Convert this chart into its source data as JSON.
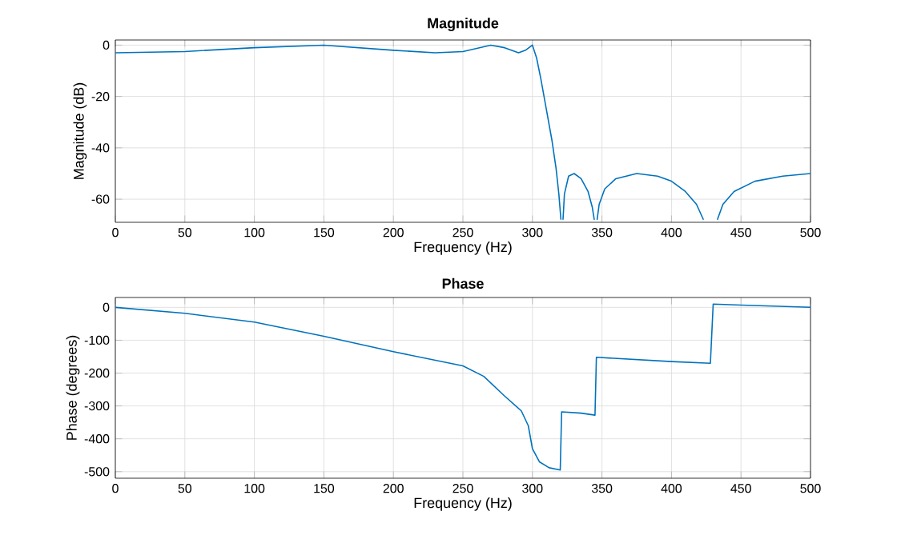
{
  "chart_data": [
    {
      "type": "line",
      "title": "Magnitude",
      "xlabel": "Frequency (Hz)",
      "ylabel": "Magnitude (dB)",
      "xlim": [
        0,
        500
      ],
      "ylim": [
        -69,
        2
      ],
      "xticks": [
        0,
        50,
        100,
        150,
        200,
        250,
        300,
        350,
        400,
        450,
        500
      ],
      "yticks": [
        -60,
        -40,
        -20,
        0
      ],
      "grid": true,
      "x": [
        0,
        50,
        100,
        150,
        200,
        230,
        250,
        270,
        280,
        290,
        295,
        300,
        303,
        306,
        310,
        314,
        317,
        319,
        320.5,
        321,
        322,
        323,
        326,
        330,
        335,
        340,
        343,
        344.5,
        345.5,
        346.5,
        348,
        352,
        360,
        375,
        390,
        400,
        410,
        418,
        423,
        428,
        433,
        437,
        445,
        460,
        480,
        500
      ],
      "series": [
        {
          "color": "#0072bd",
          "values": [
            -3,
            -2.5,
            -1,
            0,
            -2,
            -3,
            -2.5,
            0,
            -1,
            -3,
            -2,
            0,
            -5,
            -13,
            -25,
            -37,
            -48,
            -58,
            -68,
            null,
            -68,
            -58,
            -51,
            -50,
            -52,
            -57,
            -63,
            -68,
            null,
            -68,
            -62,
            -56,
            -52,
            -50,
            -51,
            -53,
            -57,
            -62,
            -68,
            null,
            -68,
            -62,
            -57,
            -53,
            -51,
            -50
          ]
        }
      ]
    },
    {
      "type": "line",
      "title": "Phase",
      "xlabel": "Frequency (Hz)",
      "ylabel": "Phase (degrees)",
      "xlim": [
        0,
        500
      ],
      "ylim": [
        -520,
        30
      ],
      "xticks": [
        0,
        50,
        100,
        150,
        200,
        250,
        300,
        350,
        400,
        450,
        500
      ],
      "yticks": [
        -500,
        -400,
        -300,
        -200,
        -100,
        0
      ],
      "grid": true,
      "x": [
        0,
        50,
        100,
        150,
        200,
        250,
        265,
        280,
        292,
        297,
        300,
        305,
        312,
        320,
        321,
        335,
        345,
        346,
        400,
        428,
        430,
        450,
        500
      ],
      "series": [
        {
          "color": "#0072bd",
          "values": [
            0,
            -18,
            -45,
            -88,
            -135,
            -178,
            -210,
            -270,
            -315,
            -360,
            -430,
            -470,
            -488,
            -495,
            -318,
            -322,
            -328,
            -152,
            -165,
            -170,
            10,
            7,
            0
          ]
        }
      ]
    }
  ]
}
